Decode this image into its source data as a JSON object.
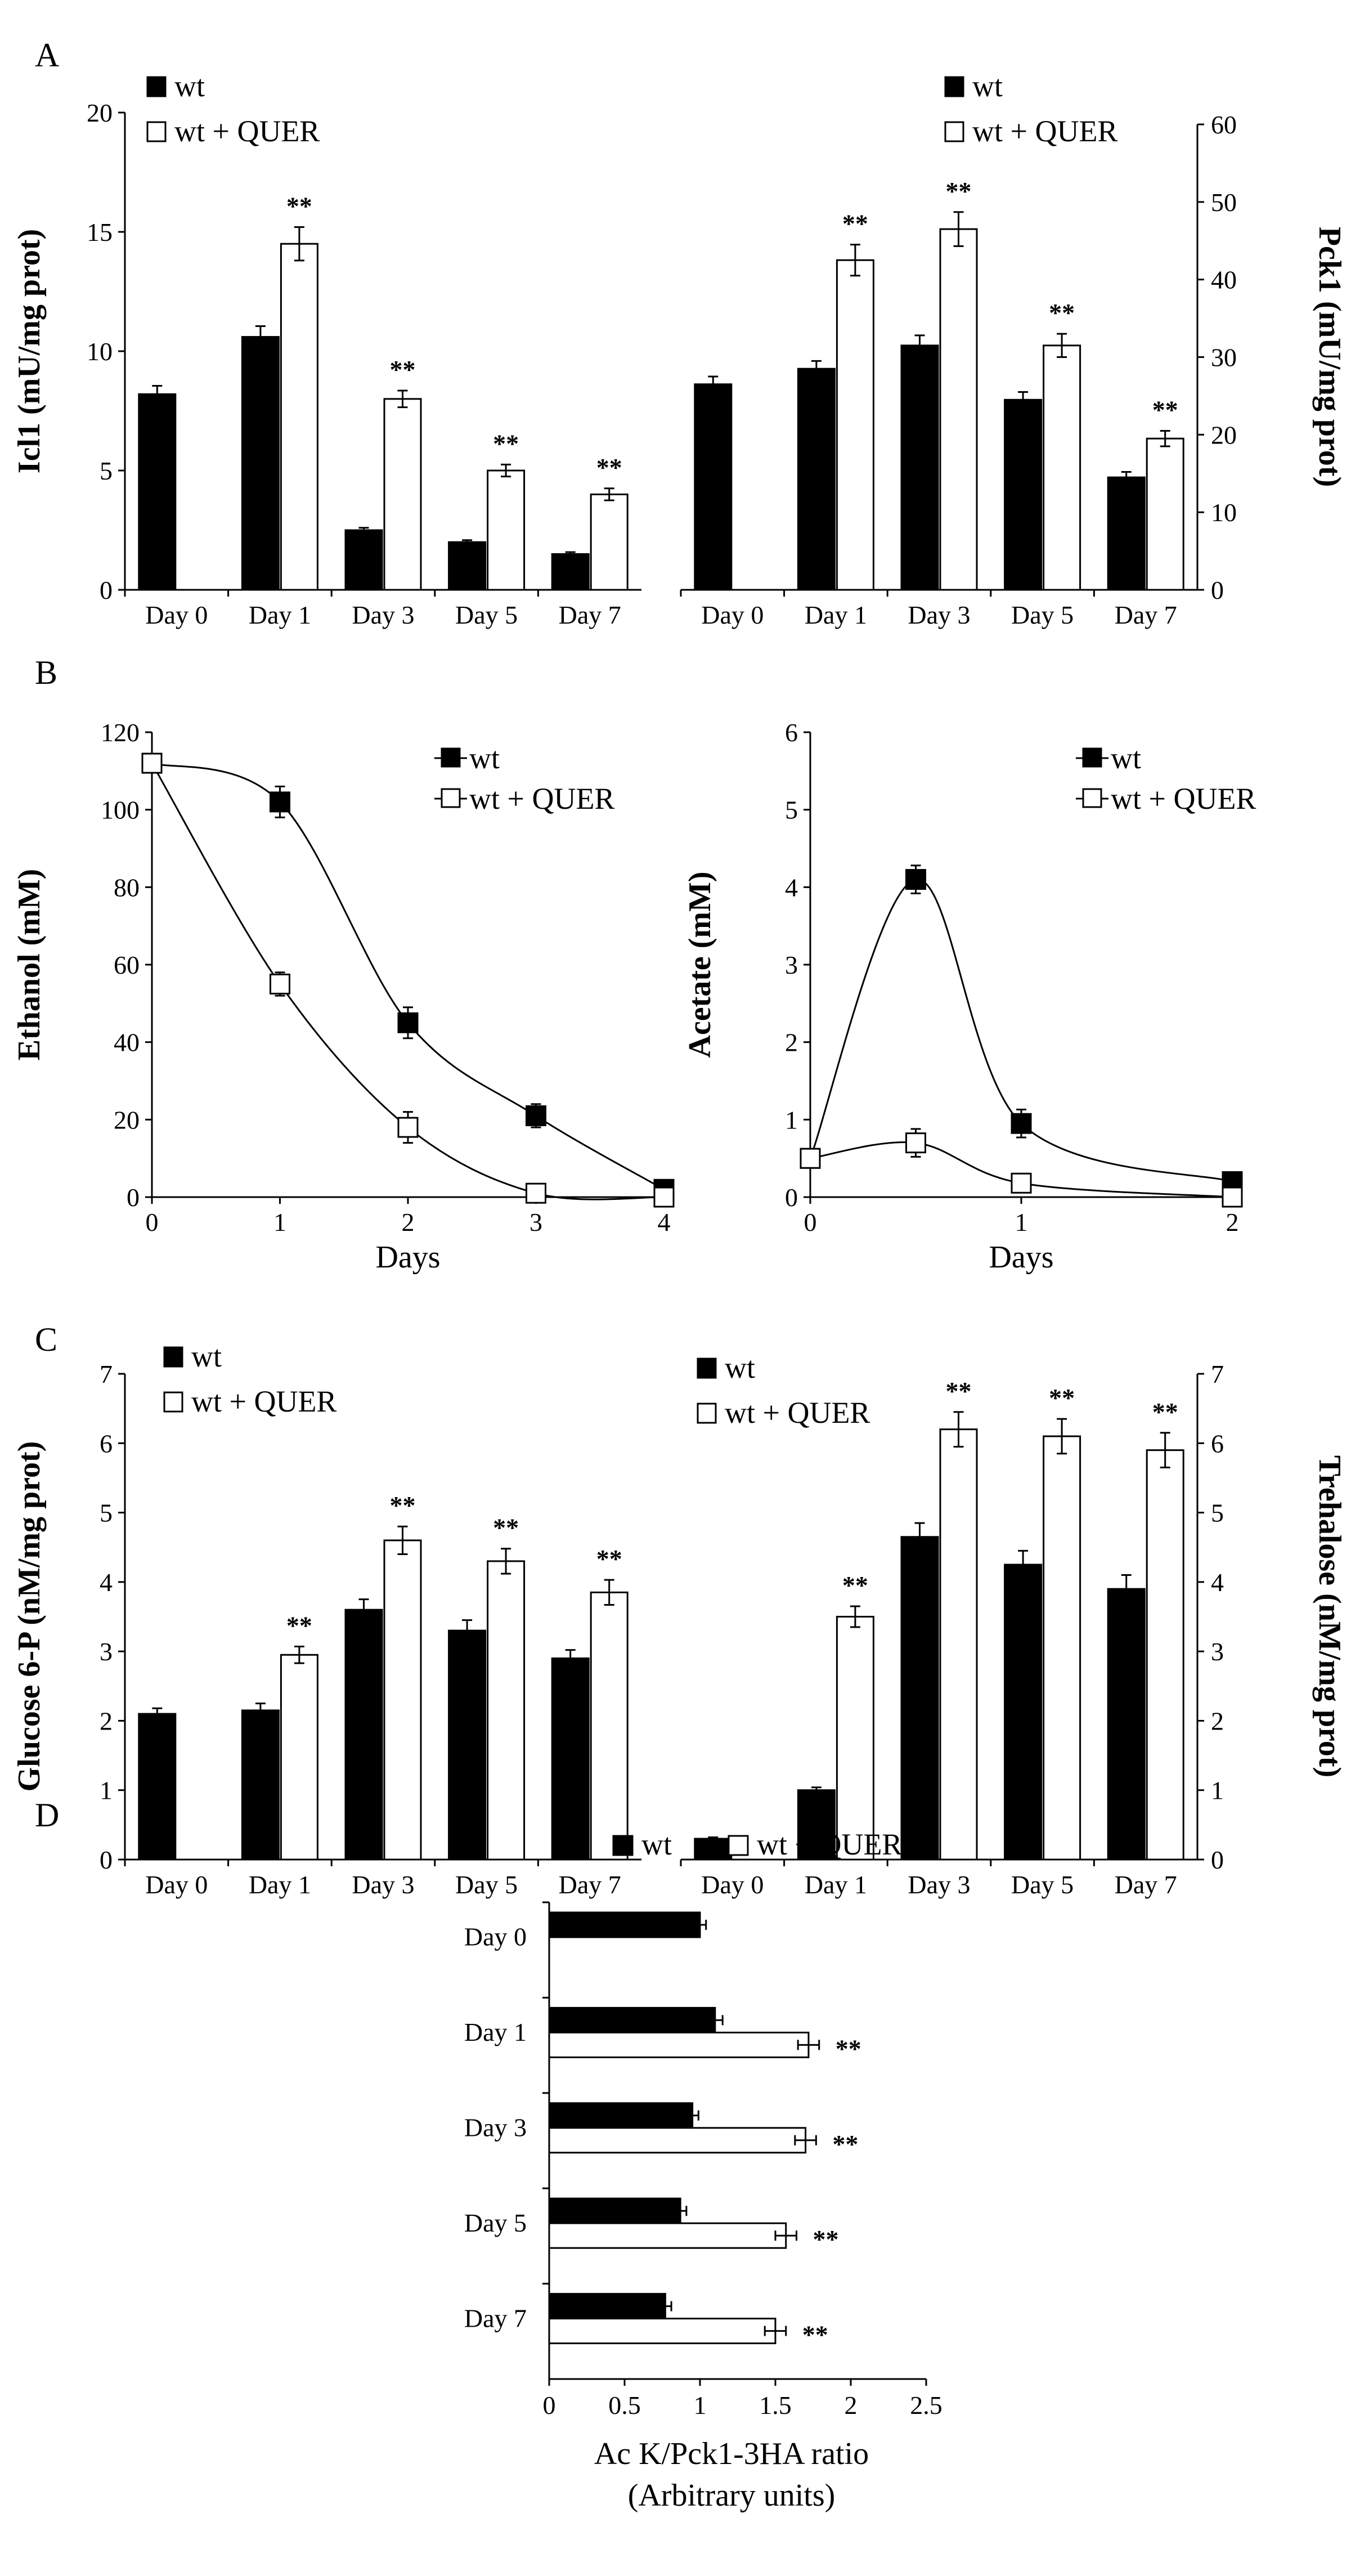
{
  "panels": [
    "A",
    "B",
    "C",
    "D"
  ],
  "legend": {
    "wt": "wt",
    "wt_quer": "wt + QUER"
  },
  "significance_marker": "**",
  "chart_data": [
    {
      "id": "A_left",
      "type": "bar",
      "ylabel": "Icl1 (mU/mg prot)",
      "ylim": [
        0,
        20
      ],
      "yticks": [
        0,
        5,
        10,
        15,
        20
      ],
      "categories": [
        "Day 0",
        "Day 1",
        "Day 3",
        "Day 5",
        "Day 7"
      ],
      "series": [
        {
          "name": "wt",
          "values": [
            8.2,
            10.6,
            2.5,
            2.0,
            1.5
          ],
          "errors": [
            0.35,
            0.45,
            0.1,
            0.08,
            0.08
          ]
        },
        {
          "name": "wt + QUER",
          "values": [
            null,
            14.5,
            8.0,
            5.0,
            4.0
          ],
          "errors": [
            null,
            0.7,
            0.35,
            0.25,
            0.25
          ]
        }
      ],
      "significant": [
        false,
        true,
        true,
        true,
        true
      ]
    },
    {
      "id": "A_right",
      "type": "bar",
      "ylabel": "Pck1 (mU/mg prot)",
      "ylim": [
        0,
        60
      ],
      "yticks": [
        0,
        10,
        20,
        30,
        40,
        50,
        60
      ],
      "categories": [
        "Day 0",
        "Day 1",
        "Day 3",
        "Day 5",
        "Day 7"
      ],
      "series": [
        {
          "name": "wt",
          "values": [
            26.5,
            28.5,
            31.5,
            24.5,
            14.5
          ],
          "errors": [
            1.0,
            1.0,
            1.3,
            1.0,
            0.7
          ]
        },
        {
          "name": "wt + QUER",
          "values": [
            null,
            42.5,
            46.5,
            31.5,
            19.5
          ],
          "errors": [
            null,
            2.0,
            2.2,
            1.5,
            1.0
          ]
        }
      ],
      "significant": [
        false,
        true,
        true,
        true,
        true
      ]
    },
    {
      "id": "B_left",
      "type": "line",
      "xlabel": "Days",
      "ylabel": "Ethanol (mM)",
      "xlim": [
        0,
        4
      ],
      "xticks": [
        0,
        1,
        2,
        3,
        4
      ],
      "ylim": [
        0,
        120
      ],
      "yticks": [
        0,
        20,
        40,
        60,
        80,
        100,
        120
      ],
      "series": [
        {
          "name": "wt",
          "x": [
            0,
            1,
            2,
            3,
            4
          ],
          "y": [
            112,
            102,
            45,
            21,
            2
          ],
          "errors": [
            0,
            4,
            4,
            3,
            1
          ]
        },
        {
          "name": "wt + QUER",
          "x": [
            0,
            1,
            2,
            3,
            4
          ],
          "y": [
            112,
            55,
            18,
            1,
            0
          ],
          "errors": [
            0,
            3,
            4,
            1,
            1
          ]
        }
      ]
    },
    {
      "id": "B_right",
      "type": "line",
      "xlabel": "Days",
      "ylabel": "Acetate (mM)",
      "xlim": [
        0,
        2
      ],
      "xticks": [
        0,
        1,
        2
      ],
      "ylim": [
        0,
        6
      ],
      "yticks": [
        0,
        1,
        2,
        3,
        4,
        5,
        6
      ],
      "series": [
        {
          "name": "wt",
          "x": [
            0,
            0.5,
            1,
            2
          ],
          "y": [
            0.5,
            4.1,
            0.95,
            0.2
          ],
          "errors": [
            0.1,
            0.18,
            0.18,
            0.05
          ]
        },
        {
          "name": "wt + QUER",
          "x": [
            0,
            0.5,
            1,
            2
          ],
          "y": [
            0.5,
            0.7,
            0.18,
            0.0
          ],
          "errors": [
            0.1,
            0.18,
            0.1,
            0.03
          ]
        }
      ]
    },
    {
      "id": "C_left",
      "type": "bar",
      "ylabel": "Glucose 6-P (nM/mg prot)",
      "ylim": [
        0,
        7
      ],
      "yticks": [
        0,
        1,
        2,
        3,
        4,
        5,
        6,
        7
      ],
      "categories": [
        "Day 0",
        "Day 1",
        "Day 3",
        "Day 5",
        "Day 7"
      ],
      "series": [
        {
          "name": "wt",
          "values": [
            2.1,
            2.15,
            3.6,
            3.3,
            2.9
          ],
          "errors": [
            0.08,
            0.1,
            0.15,
            0.15,
            0.12
          ]
        },
        {
          "name": "wt + QUER",
          "values": [
            null,
            2.95,
            4.6,
            4.3,
            3.85
          ],
          "errors": [
            null,
            0.12,
            0.2,
            0.18,
            0.18
          ]
        }
      ],
      "significant": [
        false,
        true,
        true,
        true,
        true
      ]
    },
    {
      "id": "C_right",
      "type": "bar",
      "ylabel": "Trehalose (nM/mg prot)",
      "ylim": [
        0,
        7
      ],
      "yticks": [
        0,
        1,
        2,
        3,
        4,
        5,
        6,
        7
      ],
      "categories": [
        "Day 0",
        "Day 1",
        "Day 3",
        "Day 5",
        "Day 7"
      ],
      "series": [
        {
          "name": "wt",
          "values": [
            0.3,
            1.0,
            4.65,
            4.25,
            3.9
          ],
          "errors": [
            0.02,
            0.04,
            0.2,
            0.2,
            0.2
          ]
        },
        {
          "name": "wt + QUER",
          "values": [
            null,
            3.5,
            6.2,
            6.1,
            5.9
          ],
          "errors": [
            null,
            0.15,
            0.25,
            0.25,
            0.25
          ]
        }
      ],
      "significant": [
        false,
        true,
        true,
        true,
        true
      ]
    },
    {
      "id": "D",
      "type": "bar",
      "orientation": "horizontal",
      "xlabel_lines": [
        "Ac K/Pck1-3HA ratio",
        "(Arbitrary units)"
      ],
      "xlim": [
        0,
        2.5
      ],
      "xticks": [
        0,
        0.5,
        1,
        1.5,
        2,
        2.5
      ],
      "xticklabels": [
        "0",
        "0.5",
        "1",
        "1.5",
        "2",
        "2.5"
      ],
      "categories": [
        "Day 0",
        "Day 1",
        "Day 3",
        "Day 5",
        "Day 7"
      ],
      "series": [
        {
          "name": "wt",
          "values": [
            1.0,
            1.1,
            0.95,
            0.87,
            0.77
          ],
          "errors": [
            0.04,
            0.05,
            0.04,
            0.04,
            0.04
          ]
        },
        {
          "name": "wt + QUER",
          "values": [
            null,
            1.72,
            1.7,
            1.57,
            1.5
          ],
          "errors": [
            null,
            0.07,
            0.07,
            0.07,
            0.07
          ]
        }
      ],
      "significant": [
        false,
        true,
        true,
        true,
        true
      ]
    }
  ]
}
